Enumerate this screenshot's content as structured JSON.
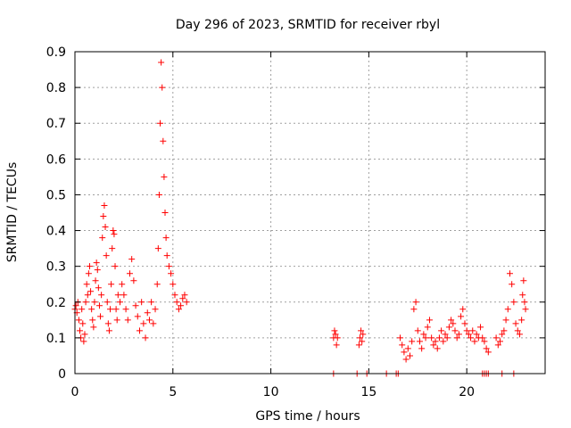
{
  "chart_data": {
    "type": "scatter",
    "title": "Day 296 of 2023, SRMTID for receiver rbyl",
    "xlabel": "GPS time / hours",
    "ylabel": "SRMTID / TECUs",
    "xlim": [
      0,
      24
    ],
    "ylim": [
      0,
      0.9
    ],
    "xticks": [
      0,
      5,
      10,
      15,
      20
    ],
    "yticks": [
      0,
      0.1,
      0.2,
      0.3,
      0.4,
      0.5,
      0.6,
      0.7,
      0.8,
      0.9
    ],
    "xtick_labels": [
      "0",
      "5",
      "10",
      "15",
      "20"
    ],
    "ytick_labels": [
      "0",
      "0.1",
      "0.2",
      "0.3",
      "0.4",
      "0.5",
      "0.6",
      "0.7",
      "0.8",
      "0.9"
    ],
    "grid": true,
    "marker": "+",
    "color": "#ff0000",
    "series": [
      {
        "name": "SRMTID",
        "points": [
          [
            0.0,
            0.18
          ],
          [
            0.05,
            0.19
          ],
          [
            0.1,
            0.17
          ],
          [
            0.15,
            0.2
          ],
          [
            0.2,
            0.15
          ],
          [
            0.25,
            0.12
          ],
          [
            0.3,
            0.1
          ],
          [
            0.35,
            0.18
          ],
          [
            0.4,
            0.14
          ],
          [
            0.45,
            0.09
          ],
          [
            0.5,
            0.11
          ],
          [
            0.55,
            0.2
          ],
          [
            0.6,
            0.25
          ],
          [
            0.65,
            0.22
          ],
          [
            0.7,
            0.28
          ],
          [
            0.75,
            0.3
          ],
          [
            0.8,
            0.23
          ],
          [
            0.85,
            0.18
          ],
          [
            0.9,
            0.15
          ],
          [
            0.95,
            0.13
          ],
          [
            1.0,
            0.2
          ],
          [
            1.05,
            0.26
          ],
          [
            1.1,
            0.31
          ],
          [
            1.15,
            0.29
          ],
          [
            1.2,
            0.24
          ],
          [
            1.25,
            0.19
          ],
          [
            1.3,
            0.16
          ],
          [
            1.35,
            0.22
          ],
          [
            1.4,
            0.38
          ],
          [
            1.45,
            0.44
          ],
          [
            1.5,
            0.47
          ],
          [
            1.55,
            0.41
          ],
          [
            1.6,
            0.33
          ],
          [
            1.65,
            0.2
          ],
          [
            1.7,
            0.14
          ],
          [
            1.75,
            0.12
          ],
          [
            1.8,
            0.18
          ],
          [
            1.85,
            0.25
          ],
          [
            1.9,
            0.35
          ],
          [
            1.95,
            0.4
          ],
          [
            2.0,
            0.39
          ],
          [
            2.05,
            0.3
          ],
          [
            2.1,
            0.18
          ],
          [
            2.15,
            0.15
          ],
          [
            2.2,
            0.22
          ],
          [
            2.3,
            0.2
          ],
          [
            2.4,
            0.25
          ],
          [
            2.5,
            0.22
          ],
          [
            2.6,
            0.18
          ],
          [
            2.7,
            0.15
          ],
          [
            2.8,
            0.28
          ],
          [
            2.9,
            0.32
          ],
          [
            3.0,
            0.26
          ],
          [
            3.1,
            0.19
          ],
          [
            3.2,
            0.16
          ],
          [
            3.3,
            0.12
          ],
          [
            3.4,
            0.2
          ],
          [
            3.5,
            0.14
          ],
          [
            3.6,
            0.1
          ],
          [
            3.7,
            0.17
          ],
          [
            3.8,
            0.15
          ],
          [
            3.9,
            0.2
          ],
          [
            4.0,
            0.14
          ],
          [
            4.1,
            0.18
          ],
          [
            4.2,
            0.25
          ],
          [
            4.25,
            0.35
          ],
          [
            4.3,
            0.5
          ],
          [
            4.35,
            0.7
          ],
          [
            4.4,
            0.87
          ],
          [
            4.45,
            0.8
          ],
          [
            4.5,
            0.65
          ],
          [
            4.55,
            0.55
          ],
          [
            4.6,
            0.45
          ],
          [
            4.65,
            0.38
          ],
          [
            4.7,
            0.33
          ],
          [
            4.8,
            0.3
          ],
          [
            4.9,
            0.28
          ],
          [
            5.0,
            0.25
          ],
          [
            5.1,
            0.22
          ],
          [
            5.2,
            0.2
          ],
          [
            5.3,
            0.18
          ],
          [
            5.4,
            0.19
          ],
          [
            5.5,
            0.21
          ],
          [
            5.6,
            0.22
          ],
          [
            5.7,
            0.2
          ],
          [
            13.2,
            0.1
          ],
          [
            13.25,
            0.12
          ],
          [
            13.3,
            0.11
          ],
          [
            13.35,
            0.08
          ],
          [
            13.4,
            0.1
          ],
          [
            14.5,
            0.08
          ],
          [
            14.55,
            0.1
          ],
          [
            14.6,
            0.12
          ],
          [
            14.65,
            0.09
          ],
          [
            14.7,
            0.11
          ],
          [
            16.6,
            0.1
          ],
          [
            16.7,
            0.08
          ],
          [
            16.8,
            0.06
          ],
          [
            16.9,
            0.04
          ],
          [
            17.0,
            0.07
          ],
          [
            17.1,
            0.05
          ],
          [
            17.2,
            0.09
          ],
          [
            17.3,
            0.18
          ],
          [
            17.4,
            0.2
          ],
          [
            17.5,
            0.12
          ],
          [
            17.6,
            0.09
          ],
          [
            17.7,
            0.07
          ],
          [
            17.8,
            0.11
          ],
          [
            17.9,
            0.1
          ],
          [
            18.0,
            0.13
          ],
          [
            18.1,
            0.15
          ],
          [
            18.2,
            0.1
          ],
          [
            18.3,
            0.08
          ],
          [
            18.4,
            0.09
          ],
          [
            18.5,
            0.07
          ],
          [
            18.6,
            0.1
          ],
          [
            18.7,
            0.12
          ],
          [
            18.8,
            0.09
          ],
          [
            18.9,
            0.11
          ],
          [
            19.0,
            0.1
          ],
          [
            19.1,
            0.13
          ],
          [
            19.2,
            0.15
          ],
          [
            19.3,
            0.14
          ],
          [
            19.4,
            0.12
          ],
          [
            19.5,
            0.1
          ],
          [
            19.6,
            0.11
          ],
          [
            19.7,
            0.16
          ],
          [
            19.8,
            0.18
          ],
          [
            19.9,
            0.14
          ],
          [
            20.0,
            0.12
          ],
          [
            20.1,
            0.11
          ],
          [
            20.2,
            0.1
          ],
          [
            20.3,
            0.12
          ],
          [
            20.4,
            0.09
          ],
          [
            20.5,
            0.11
          ],
          [
            20.6,
            0.1
          ],
          [
            20.7,
            0.13
          ],
          [
            20.8,
            0.1
          ],
          [
            20.9,
            0.09
          ],
          [
            21.0,
            0.07
          ],
          [
            21.1,
            0.06
          ],
          [
            21.5,
            0.1
          ],
          [
            21.6,
            0.08
          ],
          [
            21.7,
            0.09
          ],
          [
            21.8,
            0.11
          ],
          [
            21.9,
            0.12
          ],
          [
            22.0,
            0.15
          ],
          [
            22.1,
            0.18
          ],
          [
            22.2,
            0.28
          ],
          [
            22.3,
            0.25
          ],
          [
            22.4,
            0.2
          ],
          [
            22.5,
            0.14
          ],
          [
            22.6,
            0.12
          ],
          [
            22.7,
            0.11
          ],
          [
            22.8,
            0.15
          ],
          [
            22.85,
            0.22
          ],
          [
            22.9,
            0.26
          ],
          [
            22.95,
            0.2
          ],
          [
            23.0,
            0.18
          ],
          [
            13.2,
            0.0
          ],
          [
            14.4,
            0.0
          ],
          [
            14.9,
            0.0
          ],
          [
            15.9,
            0.0
          ],
          [
            16.4,
            0.0
          ],
          [
            16.5,
            0.0
          ],
          [
            20.8,
            0.0
          ],
          [
            20.9,
            0.0
          ],
          [
            21.0,
            0.0
          ],
          [
            21.1,
            0.0
          ],
          [
            21.8,
            0.0
          ],
          [
            22.4,
            0.0
          ]
        ]
      }
    ]
  }
}
